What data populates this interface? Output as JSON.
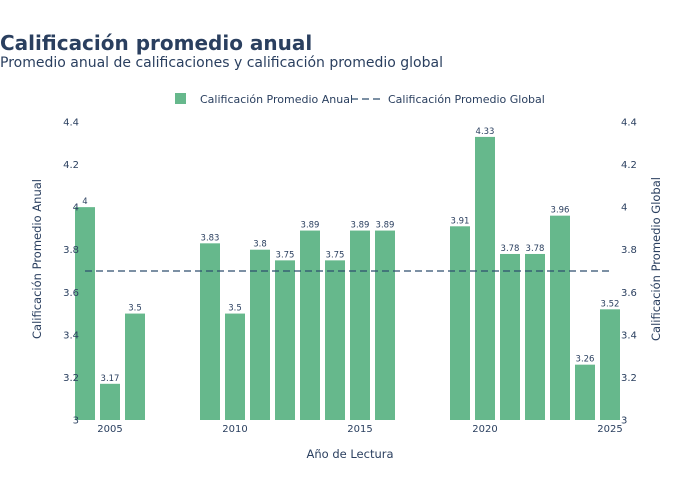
{
  "chart": {
    "title": "Calificación promedio anual",
    "subtitle": "Promedio anual de calificaciones y calificación promedio global"
  },
  "colors": {
    "bar": "#66b88c",
    "line": "#2d4e6e",
    "text": "#2a3f5f"
  },
  "chart_data": {
    "type": "bar",
    "title": "Calificación promedio anual",
    "subtitle": "Promedio anual de calificaciones y calificación promedio global",
    "xlabel": "Año de Lectura",
    "ylabel": "Calificación Promedio Anual",
    "y2label": "Calificación Promedio Global",
    "x_ticks": [
      2005,
      2010,
      2015,
      2020,
      2025
    ],
    "y_ticks": [
      3,
      3.2,
      3.4,
      3.6,
      3.8,
      4,
      4.2,
      4.4
    ],
    "y_tick_labels": [
      "3",
      "3.2",
      "3.4",
      "3.6",
      "3.8",
      "4",
      "4.2",
      "4.4"
    ],
    "xlim": [
      2003.8,
      2025.4
    ],
    "ylim": [
      3,
      4.4
    ],
    "grid": false,
    "legend_position": "top-center",
    "series": [
      {
        "name": "Calificación Promedio Anual",
        "type": "bar",
        "x": [
          2004,
          2005,
          2006,
          2009,
          2010,
          2011,
          2012,
          2013,
          2014,
          2015,
          2016,
          2019,
          2020,
          2021,
          2022,
          2023,
          2024,
          2025
        ],
        "values": [
          4,
          3.17,
          3.5,
          3.83,
          3.5,
          3.8,
          3.75,
          3.89,
          3.75,
          3.89,
          3.89,
          3.91,
          4.33,
          3.78,
          3.78,
          3.96,
          3.26,
          3.52
        ],
        "labels": [
          "4",
          "3.17",
          "3.5",
          "3.83",
          "3.5",
          "3.8",
          "3.75",
          "3.89",
          "3.75",
          "3.89",
          "3.89",
          "3.91",
          "4.33",
          "3.78",
          "3.78",
          "3.96",
          "3.26",
          "3.52"
        ]
      },
      {
        "name": "Calificación Promedio Global",
        "type": "line",
        "style": "dashed",
        "x": [
          2004,
          2025
        ],
        "values": [
          3.7,
          3.7
        ]
      }
    ]
  }
}
